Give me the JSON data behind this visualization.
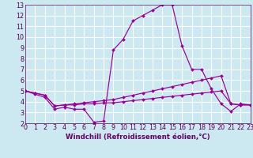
{
  "xlabel": "Windchill (Refroidissement éolien,°C)",
  "x": [
    0,
    1,
    2,
    3,
    4,
    5,
    6,
    7,
    8,
    9,
    10,
    11,
    12,
    13,
    14,
    15,
    16,
    17,
    18,
    19,
    20,
    21,
    22,
    23
  ],
  "line1": [
    5.0,
    4.7,
    4.4,
    3.3,
    3.5,
    3.3,
    3.3,
    2.1,
    2.2,
    8.8,
    9.8,
    11.5,
    12.0,
    12.5,
    13.0,
    13.0,
    9.2,
    7.0,
    7.0,
    5.2,
    3.8,
    3.1,
    3.8,
    3.7
  ],
  "line2": [
    5.0,
    4.8,
    4.6,
    3.6,
    3.7,
    3.8,
    3.9,
    4.0,
    4.1,
    4.2,
    4.4,
    4.6,
    4.8,
    5.0,
    5.2,
    5.4,
    5.6,
    5.8,
    6.0,
    6.2,
    6.4,
    3.8,
    3.7,
    3.7
  ],
  "line3": [
    5.0,
    4.8,
    4.6,
    3.6,
    3.7,
    3.7,
    3.8,
    3.8,
    3.9,
    3.9,
    4.0,
    4.1,
    4.2,
    4.3,
    4.4,
    4.5,
    4.6,
    4.7,
    4.8,
    4.9,
    5.0,
    3.8,
    3.7,
    3.7
  ],
  "ylim": [
    2,
    13
  ],
  "xlim": [
    0,
    23
  ],
  "yticks": [
    2,
    3,
    4,
    5,
    6,
    7,
    8,
    9,
    10,
    11,
    12,
    13
  ],
  "xticks": [
    0,
    1,
    2,
    3,
    4,
    5,
    6,
    7,
    8,
    9,
    10,
    11,
    12,
    13,
    14,
    15,
    16,
    17,
    18,
    19,
    20,
    21,
    22,
    23
  ],
  "line_color": "#990099",
  "bg_color": "#cce8f0",
  "grid_color": "#ffffff",
  "axis_label_color": "#660066",
  "tick_color": "#550055",
  "font_size": 5.8,
  "xlabel_fontsize": 6.2
}
